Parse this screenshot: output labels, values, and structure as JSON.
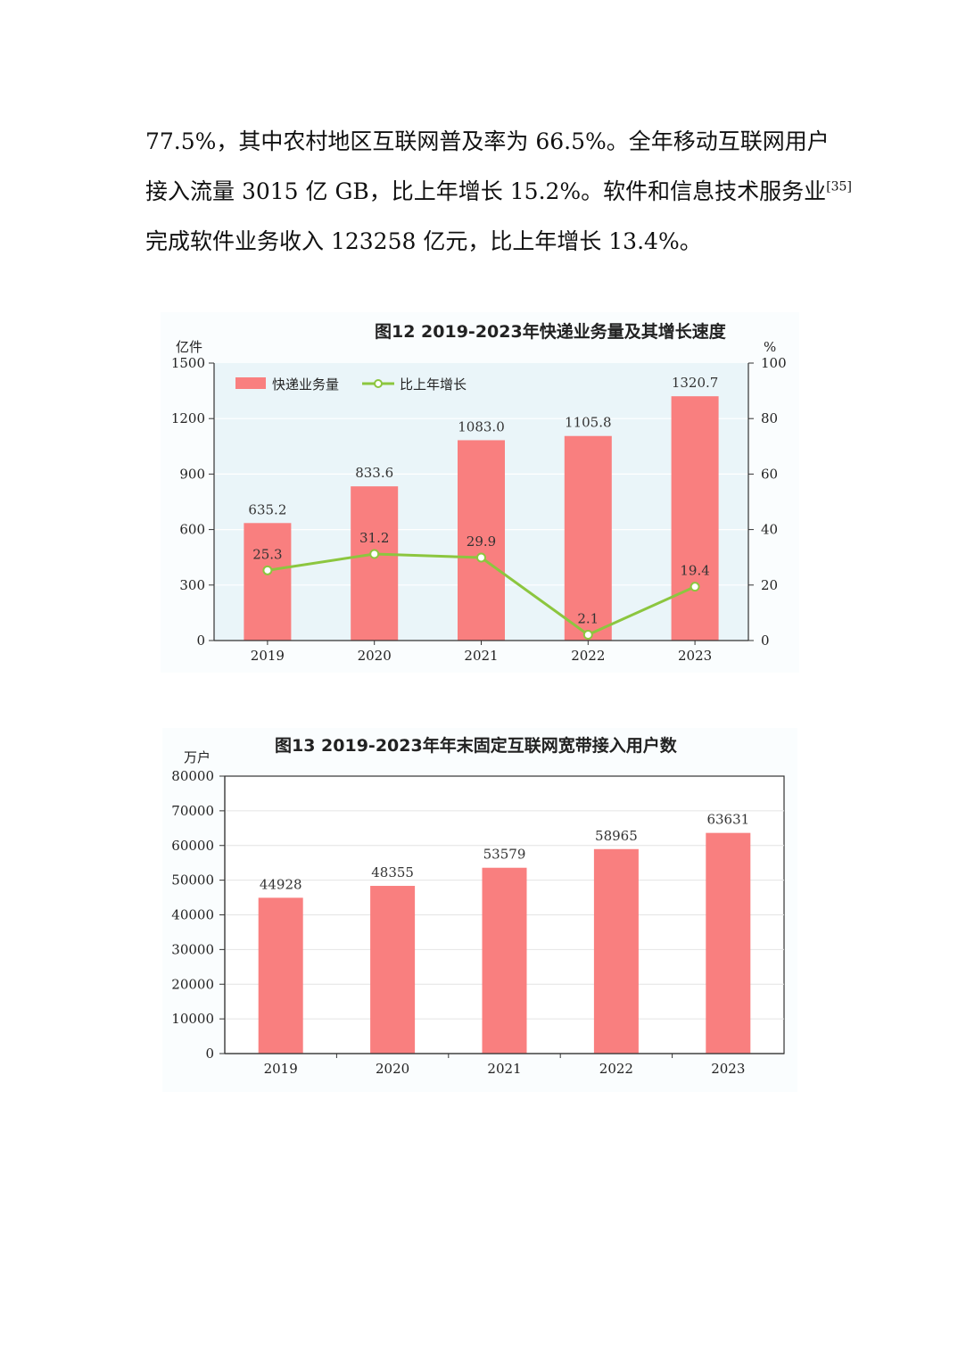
{
  "paragraph": {
    "line1": "77.5%，其中农村地区互联网普及率为 66.5%。全年移动互联网用户",
    "line2": "接入流量 3015 亿 GB，比上年增长 15.2%。软件和信息技术服务业",
    "line2_note": "[35]",
    "line3": "完成软件业务收入 123258 亿元，比上年增长 13.4%。"
  },
  "colors": {
    "bar": "#f97f7f",
    "line": "#8cc63f",
    "plot_bg": "#eaf5f9",
    "axis": "#333333"
  },
  "chart_data": [
    {
      "type": "bar",
      "title": "图12    2019-2023年快递业务量及其增长速度",
      "ylabel": "亿件",
      "y2label": "%",
      "categories": [
        "2019",
        "2020",
        "2021",
        "2022",
        "2023"
      ],
      "ylim": [
        0,
        1500
      ],
      "yticks": [
        "0",
        "300",
        "600",
        "900",
        "1200",
        "1500"
      ],
      "y2lim": [
        0,
        100
      ],
      "y2ticks": [
        "0",
        "20",
        "40",
        "60",
        "80",
        "100"
      ],
      "legend_position": "top-left",
      "series": [
        {
          "name": "快递业务量",
          "type": "bar",
          "values": [
            635.2,
            833.6,
            1083.0,
            1105.8,
            1320.7
          ],
          "labels": [
            "635.2",
            "833.6",
            "1083.0",
            "1105.8",
            "1320.7"
          ]
        },
        {
          "name": "比上年增长",
          "type": "line",
          "axis": "right",
          "values": [
            25.3,
            31.2,
            29.9,
            2.1,
            19.4
          ],
          "labels": [
            "25.3",
            "31.2",
            "29.9",
            "2.1",
            "19.4"
          ]
        }
      ]
    },
    {
      "type": "bar",
      "title": "图13    2019-2023年年末固定互联网宽带接入用户数",
      "ylabel": "万户",
      "categories": [
        "2019",
        "2020",
        "2021",
        "2022",
        "2023"
      ],
      "ylim": [
        0,
        80000
      ],
      "yticks": [
        "0",
        "10000",
        "20000",
        "30000",
        "40000",
        "50000",
        "60000",
        "70000",
        "80000"
      ],
      "series": [
        {
          "type": "bar",
          "values": [
            44928,
            48355,
            53579,
            58965,
            63631
          ],
          "labels": [
            "44928",
            "48355",
            "53579",
            "58965",
            "63631"
          ]
        }
      ]
    }
  ]
}
